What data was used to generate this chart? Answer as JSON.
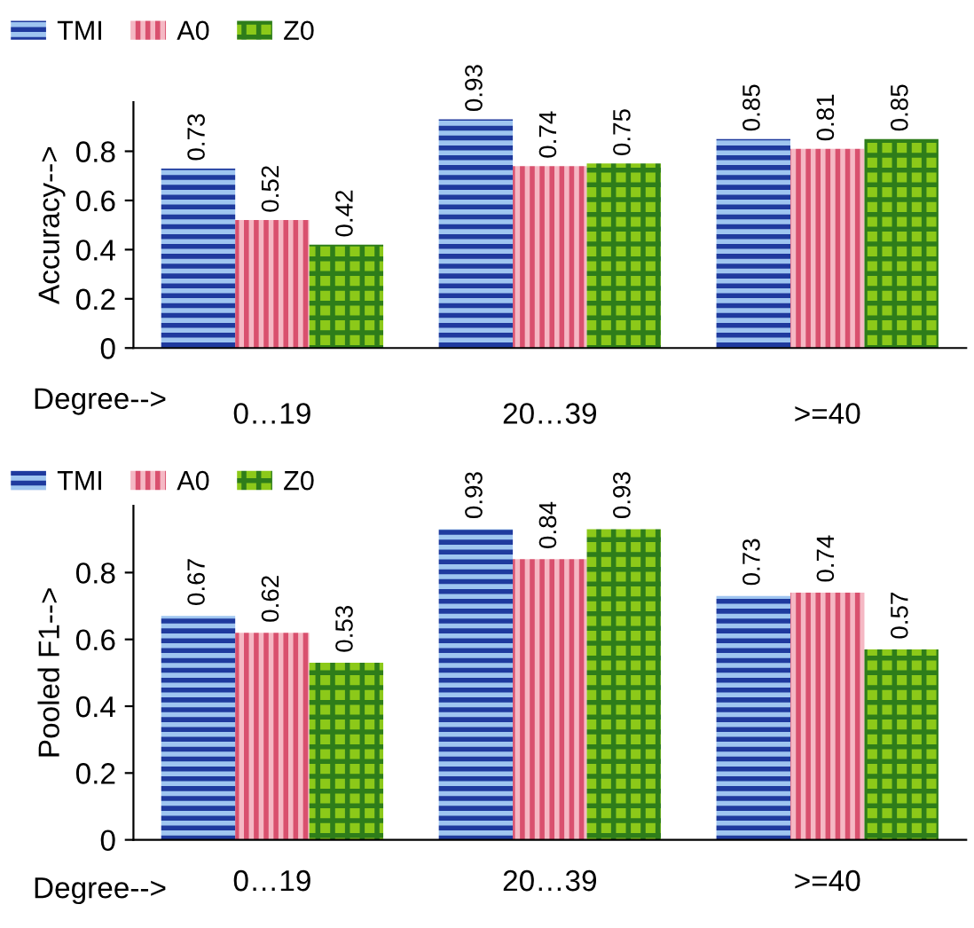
{
  "chart_data": [
    {
      "type": "bar",
      "ylabel": "Accuracy-->",
      "xlabel": "Degree-->",
      "categories": [
        "0…19",
        "20…39",
        ">=40"
      ],
      "series": [
        {
          "name": "TMI",
          "color": "#1f3a9e",
          "values": [
            0.73,
            0.93,
            0.85
          ]
        },
        {
          "name": "A0",
          "color": "#d9506e",
          "values": [
            0.52,
            0.74,
            0.81
          ]
        },
        {
          "name": "Z0",
          "color": "#8cc919",
          "values": [
            0.42,
            0.75,
            0.85
          ]
        }
      ],
      "ylim": [
        0,
        1
      ],
      "yticks": [
        0,
        0.2,
        0.4,
        0.6,
        0.8
      ],
      "data_labels": true,
      "legend": "top left",
      "grid": false
    },
    {
      "type": "bar",
      "ylabel": "Pooled F1-->",
      "xlabel": "Degree-->",
      "categories": [
        "0…19",
        "20…39",
        ">=40"
      ],
      "series": [
        {
          "name": "TMI",
          "color": "#1f3a9e",
          "values": [
            0.67,
            0.93,
            0.73
          ]
        },
        {
          "name": "A0",
          "color": "#d9506e",
          "values": [
            0.62,
            0.84,
            0.74
          ]
        },
        {
          "name": "Z0",
          "color": "#8cc919",
          "values": [
            0.53,
            0.93,
            0.57
          ]
        }
      ],
      "ylim": [
        0,
        1
      ],
      "yticks": [
        0,
        0.2,
        0.4,
        0.6,
        0.8
      ],
      "data_labels": true,
      "legend": "top left",
      "grid": false
    }
  ]
}
